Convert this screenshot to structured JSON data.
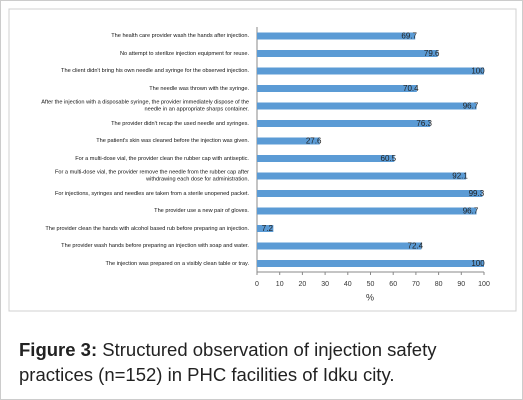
{
  "chart_data": {
    "type": "hbar",
    "categories": [
      "The health care provider wash the hands after injection.",
      "No attempt to sterilize injection equipment for reuse.",
      "The client didn't bring his own needle and syringe for the observed injection.",
      "The needle was thrown with the syringe.",
      "After the injection with a disposable syringe, the provider immediately dispose of the needle in an appropriate sharps container.",
      "The provider didn't recap the used needle and syringes.",
      "The patient's skin was cleaned before the injection was given.",
      "For a multi-dose vial, the provider clean the rubber cap with antiseptic.",
      "For a multi-dose vial, the provider remove the needle from the rubber cap after withdrawing each dose for administration.",
      "For injections, syringes and needles are taken from a sterile unopened packet.",
      "The provider use a new pair of gloves.",
      "The provider clean the hands with alcohol based rub before preparing an injection.",
      "The provider wash hands before preparing an injection with soap and water.",
      "The injection was prepared on a visibly clean table or tray."
    ],
    "values": [
      69.7,
      79.6,
      100,
      70.4,
      96.7,
      76.3,
      27.6,
      60.5,
      92.1,
      99.3,
      96.7,
      7.2,
      72.4,
      100
    ],
    "color": "#5b9bd5",
    "xlabel": "%",
    "xlim": [
      0,
      100
    ],
    "xticks": [
      0,
      10,
      20,
      30,
      40,
      50,
      60,
      70,
      80,
      90,
      100
    ],
    "grid": false
  },
  "figure": {
    "label": "Figure 3:",
    "caption": "Structured observation of injection safety practices (n=152) in PHC facilities of Idku city."
  }
}
